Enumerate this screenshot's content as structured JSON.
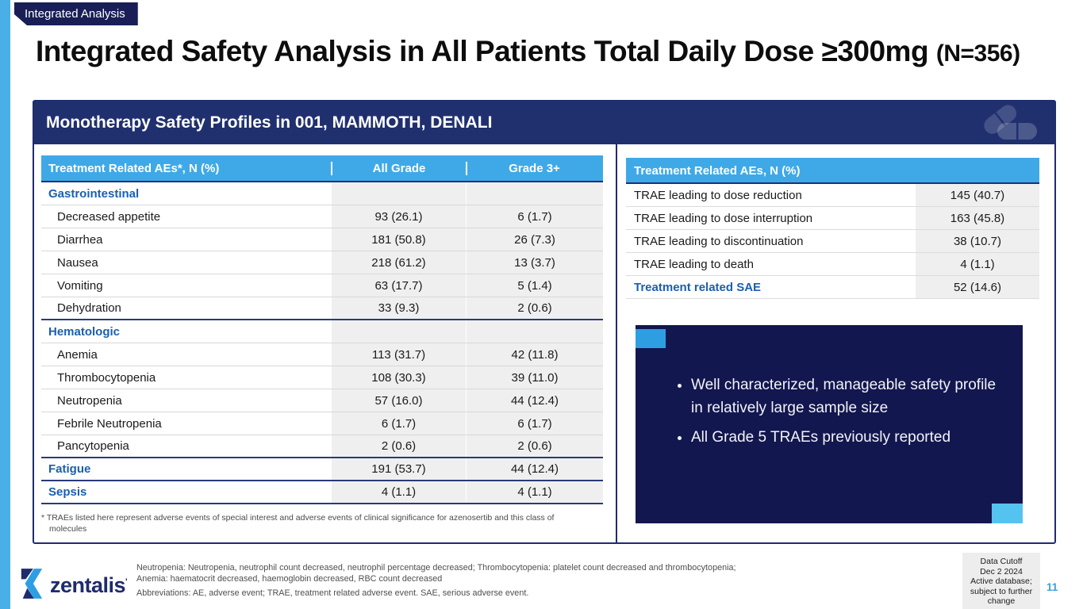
{
  "slide": {
    "tag": "Integrated Analysis",
    "title": "Integrated Safety Analysis in All Patients Total Daily Dose ≥300mg ",
    "title_suffix": "(N=356)",
    "panel_title": "Monotherapy Safety Profiles in 001, MAMMOTH, DENALI"
  },
  "left_table": {
    "headers": [
      "Treatment Related AEs*, N (%)",
      "All Grade",
      "Grade 3+"
    ],
    "rows": [
      {
        "type": "section",
        "label": "Gastrointestinal",
        "all_grade": "",
        "grade3": "",
        "divider": false
      },
      {
        "type": "item",
        "label": "Decreased appetite",
        "all_grade": "93 (26.1)",
        "grade3": "6 (1.7)",
        "divider": false
      },
      {
        "type": "item",
        "label": "Diarrhea",
        "all_grade": "181 (50.8)",
        "grade3": "26 (7.3)",
        "divider": false
      },
      {
        "type": "item",
        "label": "Nausea",
        "all_grade": "218 (61.2)",
        "grade3": "13 (3.7)",
        "divider": false
      },
      {
        "type": "item",
        "label": "Vomiting",
        "all_grade": "63 (17.7)",
        "grade3": "5 (1.4)",
        "divider": false
      },
      {
        "type": "item",
        "label": "Dehydration",
        "all_grade": "33 (9.3)",
        "grade3": "2 (0.6)",
        "divider": true
      },
      {
        "type": "section",
        "label": "Hematologic",
        "all_grade": "",
        "grade3": "",
        "divider": false
      },
      {
        "type": "item",
        "label": "Anemia",
        "all_grade": "113 (31.7)",
        "grade3": "42 (11.8)",
        "divider": false
      },
      {
        "type": "item",
        "label": "Thrombocytopenia",
        "all_grade": "108 (30.3)",
        "grade3": "39 (11.0)",
        "divider": false
      },
      {
        "type": "item",
        "label": "Neutropenia",
        "all_grade": "57 (16.0)",
        "grade3": "44 (12.4)",
        "divider": false
      },
      {
        "type": "item",
        "label": "Febrile Neutropenia",
        "all_grade": "6 (1.7)",
        "grade3": "6 (1.7)",
        "divider": false
      },
      {
        "type": "item",
        "label": "Pancytopenia",
        "all_grade": "2 (0.6)",
        "grade3": "2 (0.6)",
        "divider": true
      },
      {
        "type": "sectionv",
        "label": "Fatigue",
        "all_grade": "191 (53.7)",
        "grade3": "44 (12.4)",
        "divider": true
      },
      {
        "type": "sectionv",
        "label": "Sepsis",
        "all_grade": "4 (1.1)",
        "grade3": "4 (1.1)",
        "divider": true
      }
    ],
    "footnote": "* TRAEs listed here represent adverse events of special interest and adverse events of clinical significance for azenosertib and this class of molecules"
  },
  "right_table": {
    "header": "Treatment Related AEs, N (%)",
    "rows": [
      {
        "type": "item",
        "label": "TRAE leading to dose reduction",
        "value": "145 (40.7)"
      },
      {
        "type": "item",
        "label": "TRAE leading to dose interruption",
        "value": "163 (45.8)"
      },
      {
        "type": "item",
        "label": "TRAE leading to discontinuation",
        "value": "38 (10.7)"
      },
      {
        "type": "item",
        "label": "TRAE leading to death",
        "value": "4 (1.1)"
      },
      {
        "type": "highlight",
        "label": "Treatment related SAE",
        "value": "52 (14.6)"
      }
    ]
  },
  "callout": {
    "bullets": [
      "Well characterized, manageable safety profile in relatively large sample size",
      "All Grade 5 TRAEs previously reported"
    ]
  },
  "footer": {
    "logo_text": "zentalis",
    "logo_tm": "'",
    "notes": [
      "Neutropenia: Neutropenia, neutrophil count decreased, neutrophil percentage decreased; Thrombocytopenia: platelet count decreased and thrombocytopenia;",
      "Anemia: haematocrit decreased, haemoglobin decreased, RBC count decreased",
      "Abbreviations: AE, adverse event; TRAE, treatment related adverse event. SAE, serious adverse event."
    ],
    "data_cutoff_lines": [
      "Data Cutoff",
      "Dec 2 2024",
      "Active database;",
      "subject to further",
      "change"
    ],
    "page_number": "11"
  },
  "icons": {
    "banner_icon": "pills-icon",
    "logo_icon": "zentalis-logo-mark"
  },
  "colors": {
    "accent_blue": "#3FA9E8",
    "navy": "#20306F",
    "callout_navy": "#13174F",
    "tag_navy": "#191F56",
    "section_blue": "#1B5FAE",
    "page_blue": "#3E9EDC",
    "left_bar_blue": "#49AFE6",
    "square_top_left": "#2E9EE3",
    "square_bottom_right": "#55C3F0",
    "value_cell_bg": "#EFEFEF"
  }
}
